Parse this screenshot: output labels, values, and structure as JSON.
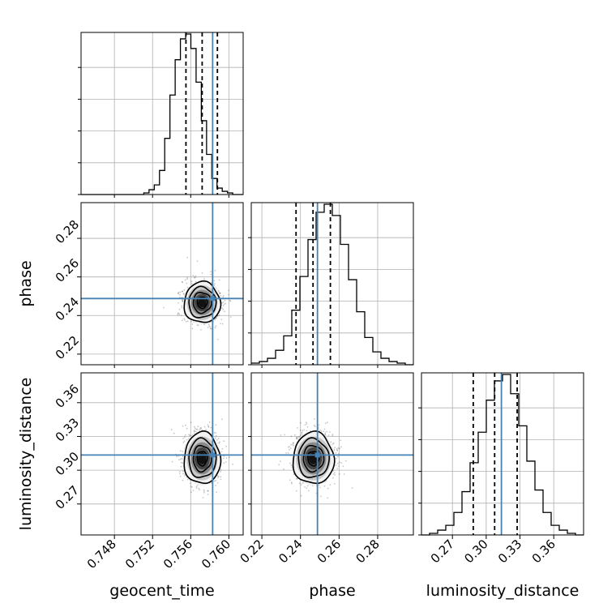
{
  "chart_data": {
    "type": "corner",
    "parameters": [
      "geocent_time",
      "phase",
      "luminosity_distance"
    ],
    "axis_labels": {
      "bottom": [
        "geocent_time",
        "phase",
        "luminosity_distance"
      ],
      "left": [
        "phase",
        "luminosity_distance"
      ]
    },
    "ranges": {
      "geocent_time": [
        0.7445,
        0.7615
      ],
      "phase": [
        0.2145,
        0.2985
      ],
      "luminosity_distance": [
        0.2425,
        0.3865
      ]
    },
    "ticks": {
      "geocent_time": [
        0.748,
        0.752,
        0.756,
        0.76
      ],
      "phase": [
        0.22,
        0.24,
        0.26,
        0.28
      ],
      "luminosity_distance": [
        0.27,
        0.3,
        0.33,
        0.36
      ]
    },
    "tick_labels": {
      "geocent_time": [
        "0.748",
        "0.752",
        "0.756",
        "0.760"
      ],
      "phase": [
        "0.22",
        "0.24",
        "0.26",
        "0.28"
      ],
      "luminosity_distance": [
        "0.27",
        "0.30",
        "0.33",
        "0.36"
      ]
    },
    "truths": {
      "geocent_time": 0.7583,
      "phase": 0.2488,
      "luminosity_distance": 0.3135
    },
    "quantiles": {
      "geocent_time": [
        0.7555,
        0.7572,
        0.7588
      ],
      "phase": [
        0.2377,
        0.2465,
        0.2555
      ],
      "luminosity_distance": [
        0.2885,
        0.3075,
        0.3275
      ]
    },
    "posterior_stats": {
      "geocent_time": {
        "mean": 0.7572,
        "sigma": 0.00095
      },
      "phase": {
        "mean": 0.2467,
        "sigma": 0.0053
      },
      "luminosity_distance": {
        "mean": 0.3105,
        "sigma": 0.0115
      }
    },
    "histograms": {
      "geocent_time": {
        "bins": [
          0.7445,
          0.7615
        ],
        "counts": [
          0,
          0,
          0,
          0,
          0,
          0,
          0,
          0,
          0,
          0,
          0,
          0,
          0.01,
          0.03,
          0.06,
          0.15,
          0.35,
          0.62,
          0.84,
          0.97,
          1.0,
          0.91,
          0.7,
          0.46,
          0.25,
          0.1,
          0.04,
          0.02,
          0.01,
          0,
          0
        ]
      },
      "phase": {
        "bins": [
          0.2145,
          0.2985
        ],
        "counts": [
          0.01,
          0.02,
          0.04,
          0.09,
          0.18,
          0.34,
          0.55,
          0.78,
          0.95,
          1.0,
          0.93,
          0.75,
          0.53,
          0.33,
          0.17,
          0.08,
          0.04,
          0.02,
          0.01,
          0
        ]
      },
      "luminosity_distance": {
        "bins": [
          0.2425,
          0.3865
        ],
        "counts": [
          0,
          0.01,
          0.03,
          0.06,
          0.14,
          0.27,
          0.45,
          0.64,
          0.84,
          0.96,
          1.0,
          0.88,
          0.68,
          0.46,
          0.28,
          0.14,
          0.06,
          0.03,
          0.01,
          0
        ]
      }
    },
    "truth_color": "#4682b4",
    "quantile_style": "dashed black",
    "contour_color": "#000000",
    "grid": true
  }
}
